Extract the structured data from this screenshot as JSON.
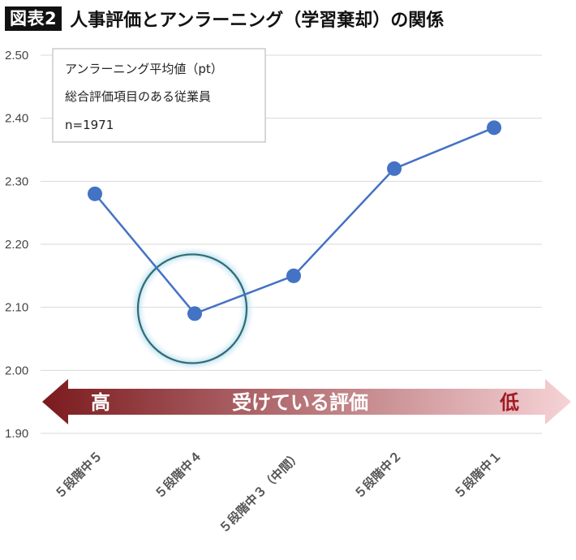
{
  "figure": {
    "badge": "図表2",
    "title": "人事評価とアンラーニング（学習棄却）の関係"
  },
  "chart_data": {
    "type": "line",
    "categories": [
      "５段階中５",
      "５段階中４",
      "５段階中３（中間）",
      "５段階中２",
      "５段階中１"
    ],
    "series": [
      {
        "values": [
          2.28,
          2.09,
          2.15,
          2.32,
          2.385
        ]
      }
    ],
    "ylim": [
      1.9,
      2.5
    ],
    "yticks": [
      "1.90",
      "2.00",
      "2.10",
      "2.20",
      "2.30",
      "2.40",
      "2.50"
    ],
    "ytick_values": [
      1.9,
      2.0,
      2.1,
      2.2,
      2.3,
      2.4,
      2.5
    ],
    "grid": true,
    "line_color": "#4472c4",
    "highlight_index": 1,
    "highlight_color": "#2e6b78",
    "legend_box": {
      "lines": [
        "アンラーニング平均値（pt）",
        "総合評価項目のある従業員",
        "n=1971"
      ],
      "placement": "top-left"
    },
    "arrow": {
      "left_label": "高",
      "center_label": "受けている評価",
      "right_label": "低",
      "dark_color": "#7b1a1e",
      "light_color": "#f6d3d6",
      "left_text_color": "#ffffff",
      "right_text_color": "#a01a24"
    }
  }
}
